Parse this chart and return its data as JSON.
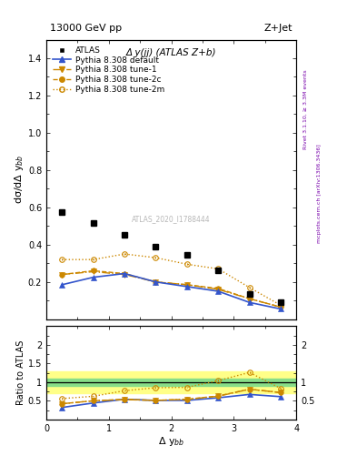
{
  "title_left": "13000 GeV pp",
  "title_right": "Z+Jet",
  "subplot_title": "Δ y(јј) (ATLAS Z+b)",
  "ylabel_main": "dσ/dΔ y$_{bb}$",
  "ylabel_ratio": "Ratio to ATLAS",
  "xlabel": "Δ y$_{bb}$",
  "right_label_top": "Rivet 3.1.10, ≥ 3.3M events",
  "right_label_bottom": "mcplots.cern.ch [arXiv:1306.3436]",
  "watermark": "ATLAS_2020_I1788444",
  "atlas_x": [
    0.25,
    0.75,
    1.25,
    1.75,
    2.25,
    2.75,
    3.25,
    3.75
  ],
  "atlas_y": [
    0.575,
    0.515,
    0.455,
    0.39,
    0.345,
    0.26,
    0.135,
    0.09
  ],
  "atlas_yerr": [
    0.012,
    0.01,
    0.009,
    0.008,
    0.008,
    0.007,
    0.005,
    0.004
  ],
  "pythia_default_x": [
    0.25,
    0.75,
    1.25,
    1.75,
    2.25,
    2.75,
    3.25,
    3.75
  ],
  "pythia_default_y": [
    0.185,
    0.225,
    0.245,
    0.2,
    0.175,
    0.15,
    0.09,
    0.055
  ],
  "pythia_default_yerr": [
    0.003,
    0.003,
    0.003,
    0.003,
    0.003,
    0.003,
    0.002,
    0.002
  ],
  "tune1_x": [
    0.25,
    0.75,
    1.25,
    1.75,
    2.25,
    2.75,
    3.25,
    3.75
  ],
  "tune1_y": [
    0.24,
    0.255,
    0.24,
    0.2,
    0.185,
    0.16,
    0.11,
    0.065
  ],
  "tune1_yerr": [
    0.003,
    0.003,
    0.003,
    0.003,
    0.003,
    0.003,
    0.002,
    0.002
  ],
  "tune2c_x": [
    0.25,
    0.75,
    1.25,
    1.75,
    2.25,
    2.75,
    3.25,
    3.75
  ],
  "tune2c_y": [
    0.24,
    0.26,
    0.245,
    0.2,
    0.185,
    0.165,
    0.11,
    0.065
  ],
  "tune2c_yerr": [
    0.003,
    0.003,
    0.003,
    0.003,
    0.003,
    0.003,
    0.002,
    0.002
  ],
  "tune2m_x": [
    0.25,
    0.75,
    1.25,
    1.75,
    2.25,
    2.75,
    3.25,
    3.75
  ],
  "tune2m_y": [
    0.32,
    0.32,
    0.35,
    0.33,
    0.295,
    0.27,
    0.17,
    0.075
  ],
  "tune2m_yerr": [
    0.004,
    0.004,
    0.004,
    0.004,
    0.004,
    0.004,
    0.003,
    0.002
  ],
  "ratio_default_y": [
    0.32,
    0.44,
    0.54,
    0.51,
    0.51,
    0.58,
    0.67,
    0.61
  ],
  "ratio_default_yerr": [
    0.018,
    0.016,
    0.016,
    0.016,
    0.016,
    0.018,
    0.022,
    0.025
  ],
  "ratio_tune1_y": [
    0.42,
    0.5,
    0.53,
    0.51,
    0.54,
    0.62,
    0.81,
    0.72
  ],
  "ratio_tune1_yerr": [
    0.015,
    0.014,
    0.014,
    0.014,
    0.014,
    0.016,
    0.018,
    0.02
  ],
  "ratio_tune2c_y": [
    0.42,
    0.5,
    0.54,
    0.51,
    0.54,
    0.63,
    0.81,
    0.72
  ],
  "ratio_tune2c_yerr": [
    0.015,
    0.014,
    0.014,
    0.014,
    0.014,
    0.016,
    0.018,
    0.02
  ],
  "ratio_tune2m_y": [
    0.56,
    0.62,
    0.77,
    0.85,
    0.86,
    1.04,
    1.26,
    0.83
  ],
  "ratio_tune2m_yerr": [
    0.018,
    0.016,
    0.018,
    0.018,
    0.018,
    0.022,
    0.026,
    0.022
  ],
  "green_band": [
    0.9,
    1.1
  ],
  "yellow_band": [
    0.7,
    1.3
  ],
  "color_atlas": "#000000",
  "color_default": "#3355cc",
  "color_tune1": "#cc8800",
  "color_tune2c": "#cc8800",
  "color_tune2m": "#cc8800",
  "xlim": [
    0,
    4
  ],
  "ylim_main": [
    0,
    1.5
  ],
  "ylim_ratio": [
    0,
    2.5
  ],
  "yticks_main": [
    0.2,
    0.4,
    0.6,
    0.8,
    1.0,
    1.2,
    1.4
  ],
  "yticks_ratio": [
    0.5,
    1.0,
    1.5,
    2.0
  ],
  "ytick_labels_ratio": [
    "0.5",
    "1",
    "1.5",
    "2"
  ],
  "ytick_labels_ratio_right": [
    "0.5",
    "1",
    "2"
  ],
  "yticks_ratio_right": [
    0.5,
    1.0,
    2.0
  ],
  "legend_labels": [
    "ATLAS",
    "Pythia 8.308 default",
    "Pythia 8.308 tune-1",
    "Pythia 8.308 tune-2c",
    "Pythia 8.308 tune-2m"
  ]
}
